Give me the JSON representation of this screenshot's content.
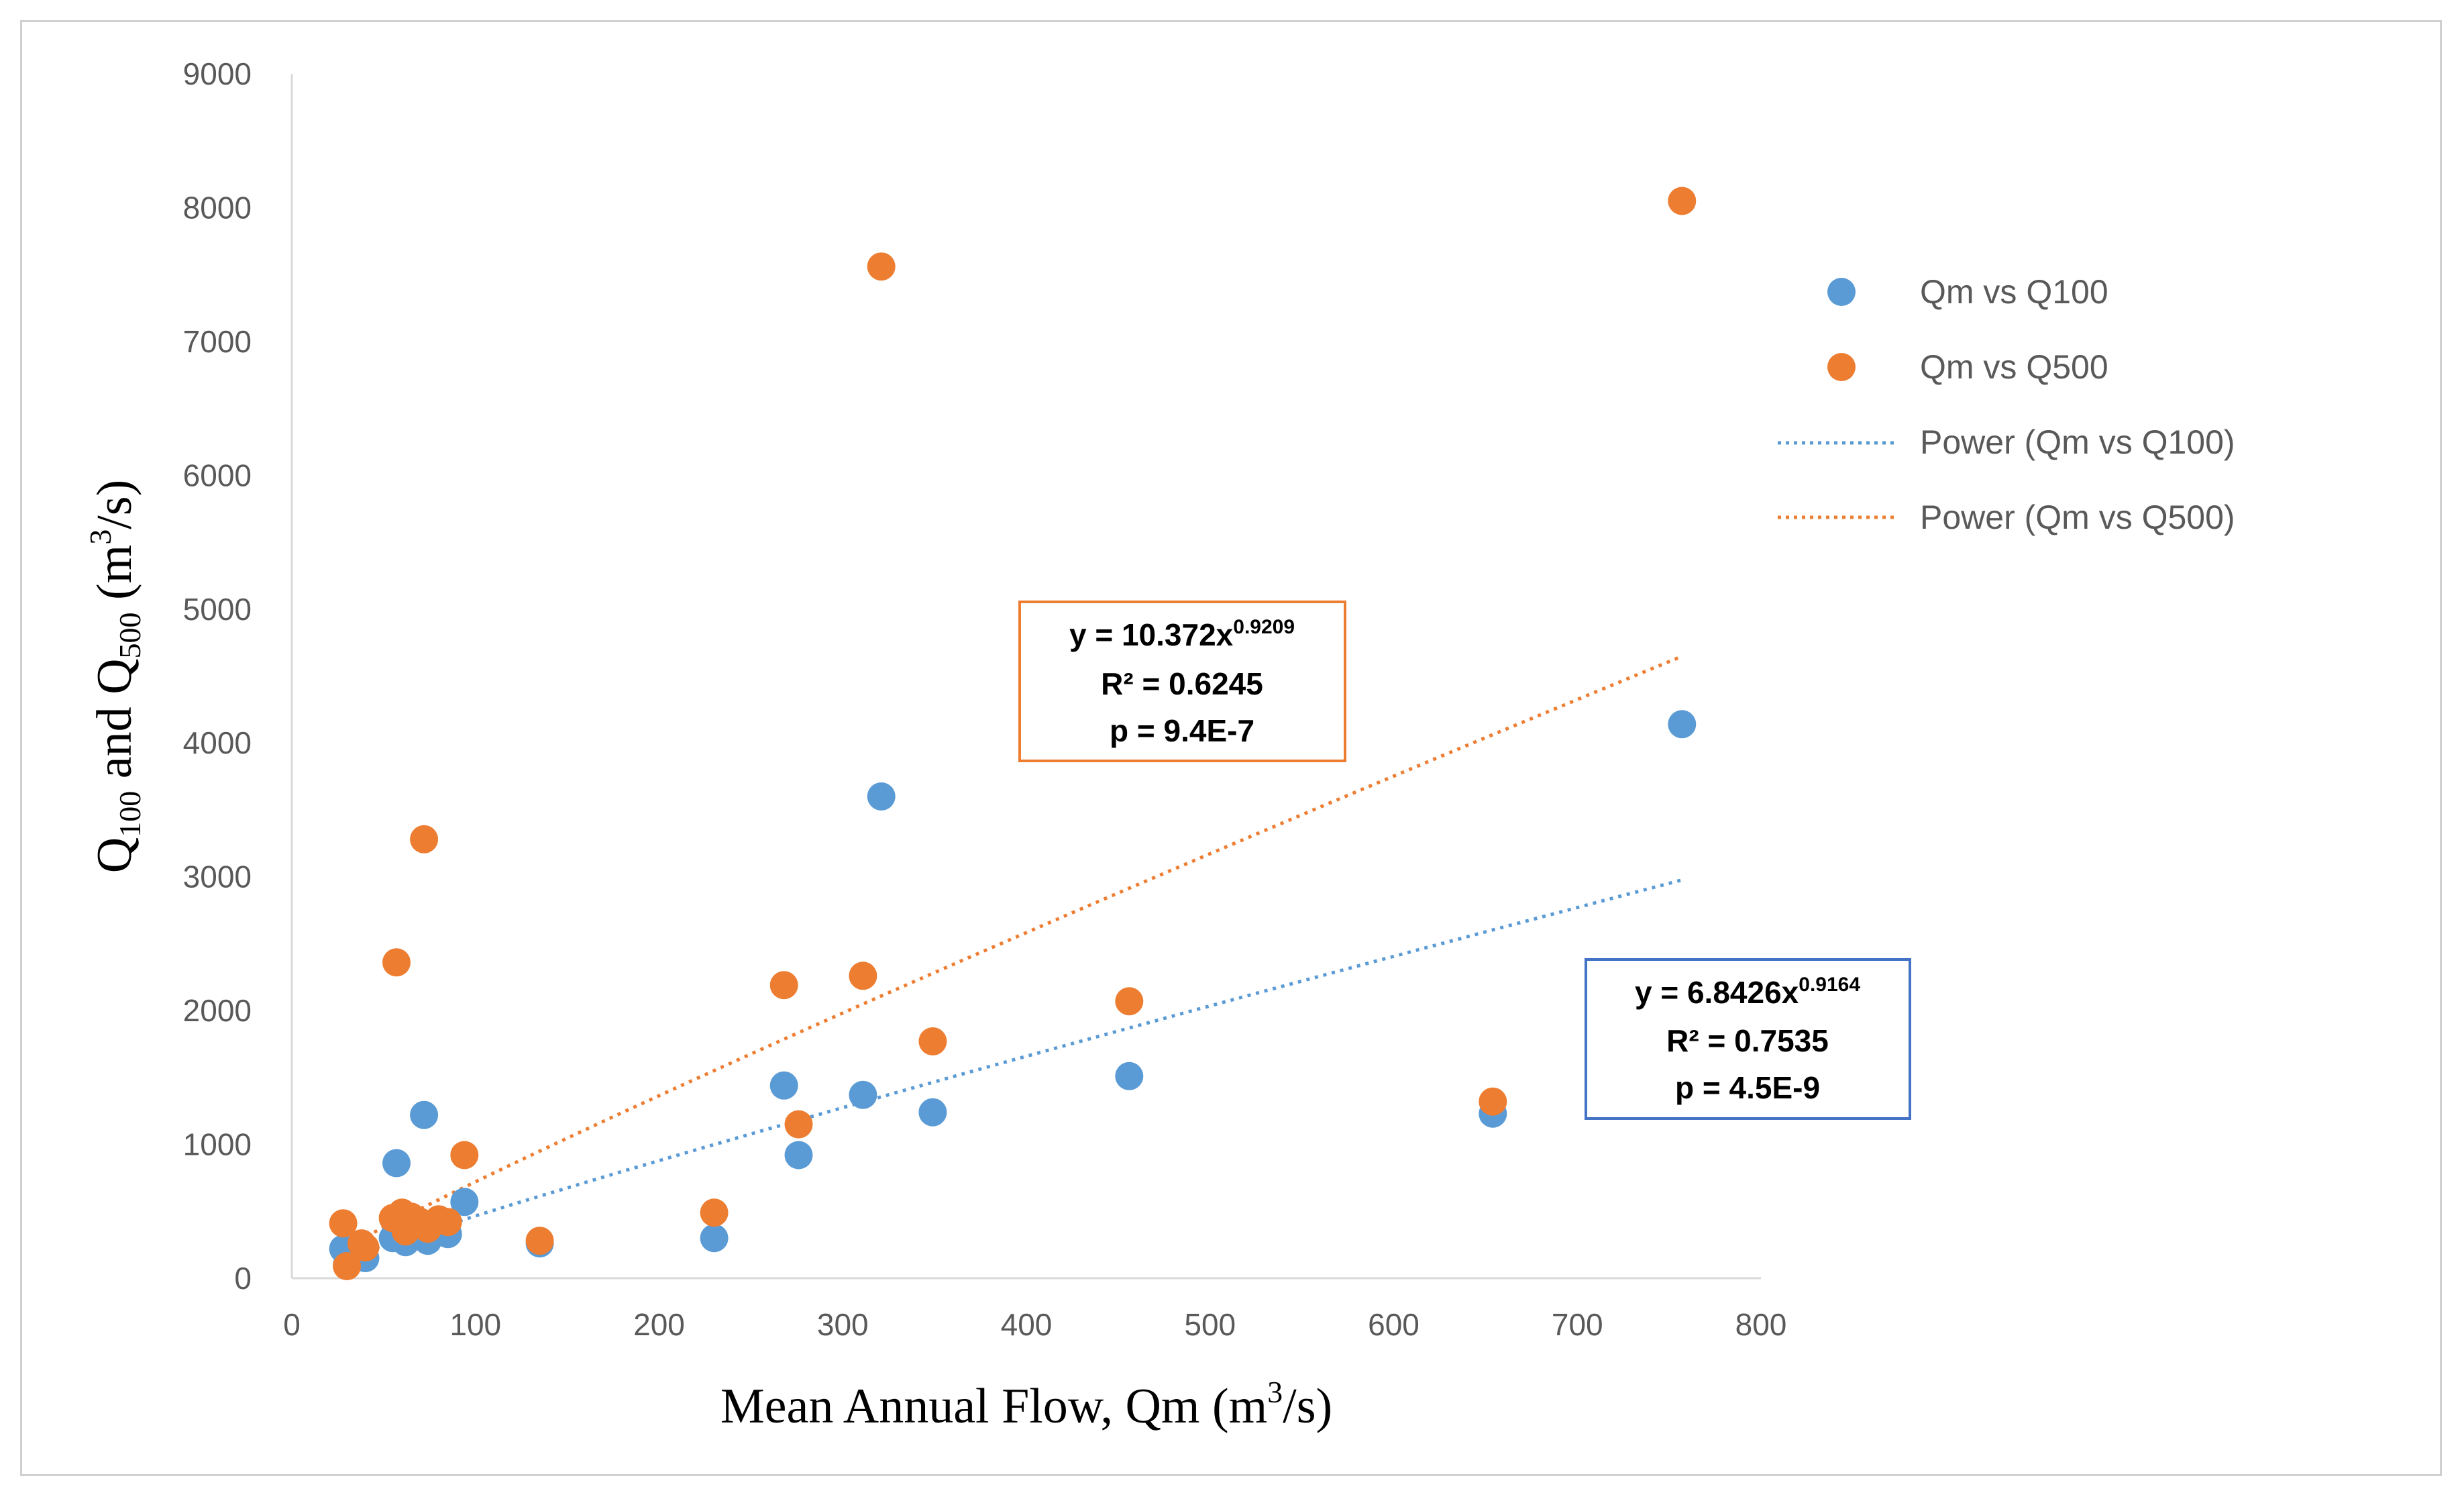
{
  "chart_data": {
    "type": "scatter",
    "title": "",
    "xlabel": {
      "text": "Mean Annual Flow, Qm (m",
      "sup": "3",
      "tail": "/s)"
    },
    "ylabel": {
      "q": "Q",
      "sub1": "100",
      "mid": " and Q",
      "sub2": "500",
      "unit": " (m",
      "sup": "3",
      "tail": "/s)"
    },
    "xlim": [
      0,
      800
    ],
    "ylim": [
      0,
      9000
    ],
    "xticks": [
      0,
      100,
      200,
      300,
      400,
      500,
      600,
      700,
      800
    ],
    "yticks": [
      0,
      1000,
      2000,
      3000,
      4000,
      5000,
      6000,
      7000,
      8000,
      9000
    ],
    "grid": false,
    "legend_position": "right",
    "series": [
      {
        "name": "Qm vs Q100",
        "color": "#5b9bd5",
        "points": [
          [
            28,
            220
          ],
          [
            30,
            100
          ],
          [
            38,
            180
          ],
          [
            40,
            150
          ],
          [
            55,
            300
          ],
          [
            57,
            860
          ],
          [
            60,
            350
          ],
          [
            62,
            270
          ],
          [
            65,
            380
          ],
          [
            70,
            330
          ],
          [
            72,
            1220
          ],
          [
            74,
            280
          ],
          [
            80,
            380
          ],
          [
            85,
            330
          ],
          [
            94,
            570
          ],
          [
            135,
            260
          ],
          [
            230,
            300
          ],
          [
            268,
            1440
          ],
          [
            276,
            920
          ],
          [
            311,
            1370
          ],
          [
            321,
            3600
          ],
          [
            349,
            1240
          ],
          [
            456,
            1510
          ],
          [
            654,
            1230
          ],
          [
            757,
            4140
          ]
        ]
      },
      {
        "name": "Qm vs Q500",
        "color": "#ed7d31",
        "points": [
          [
            28,
            410
          ],
          [
            30,
            90
          ],
          [
            38,
            260
          ],
          [
            40,
            230
          ],
          [
            55,
            450
          ],
          [
            57,
            2360
          ],
          [
            60,
            490
          ],
          [
            62,
            350
          ],
          [
            65,
            460
          ],
          [
            70,
            420
          ],
          [
            72,
            3280
          ],
          [
            74,
            370
          ],
          [
            80,
            440
          ],
          [
            85,
            420
          ],
          [
            94,
            920
          ],
          [
            135,
            280
          ],
          [
            230,
            490
          ],
          [
            268,
            2190
          ],
          [
            276,
            1150
          ],
          [
            311,
            2260
          ],
          [
            321,
            7560
          ],
          [
            349,
            1770
          ],
          [
            456,
            2070
          ],
          [
            654,
            1320
          ],
          [
            757,
            8050
          ]
        ]
      }
    ],
    "trendlines": [
      {
        "name": "Power (Qm vs Q100)",
        "series": "Qm vs Q100",
        "color": "#5b9bd5",
        "a": 6.8426,
        "b": 0.9164,
        "x_range": [
          28,
          757
        ],
        "equation": {
          "prefix": "y = 6.8426x",
          "exponent": "0.9164",
          "r2": "R² = 0.7535",
          "p": "p = 4.5E-9"
        }
      },
      {
        "name": "Power (Qm vs Q500)",
        "series": "Qm vs Q500",
        "color": "#ed7d31",
        "a": 10.372,
        "b": 0.9209,
        "x_range": [
          28,
          757
        ],
        "equation": {
          "prefix": "y = 10.372x",
          "exponent": "0.9209",
          "r2": "R² = 0.6245",
          "p": "p = 9.4E-7"
        }
      }
    ]
  }
}
